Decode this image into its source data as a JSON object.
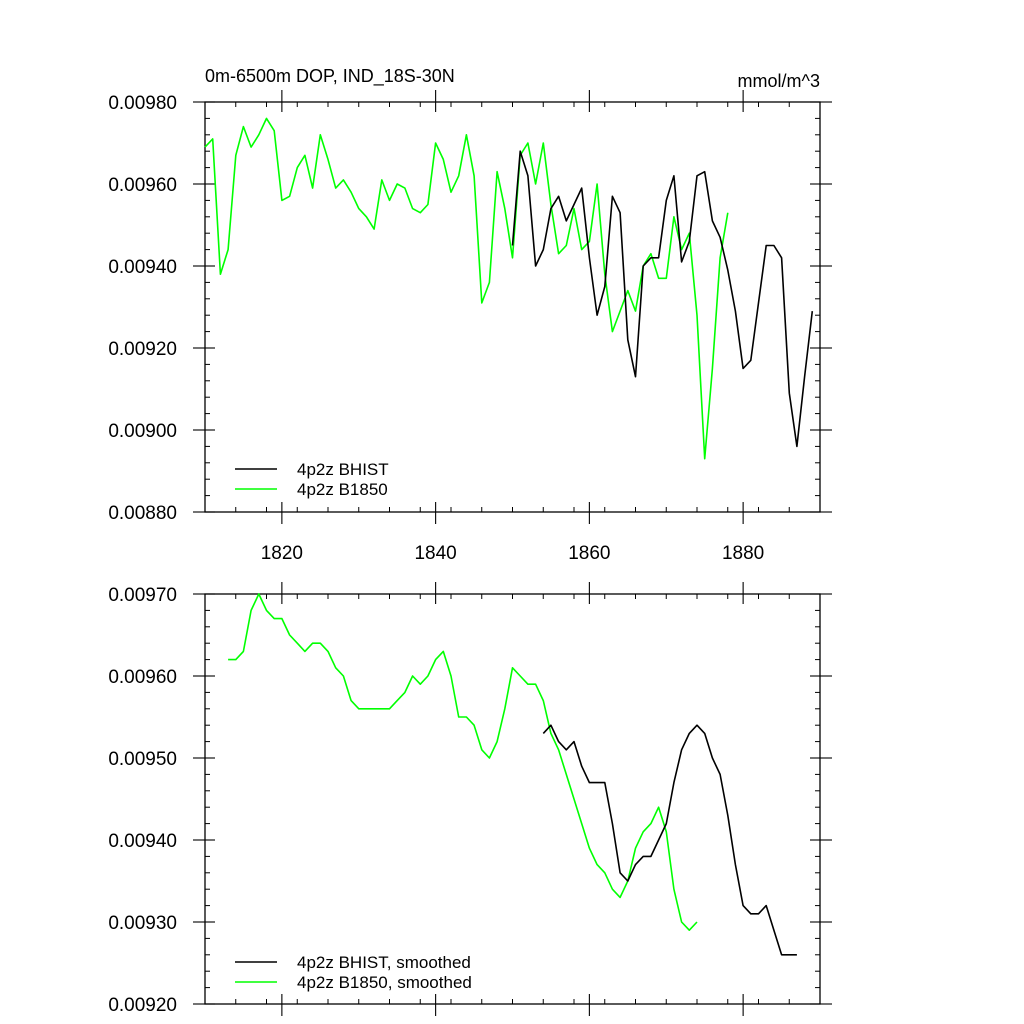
{
  "chart_data": [
    {
      "type": "line",
      "title": "0m-6500m DOP, IND_18S-30N",
      "units": "mmol/m^3",
      "xlim": [
        1810,
        1890
      ],
      "ylim": [
        0.0088,
        0.0098
      ],
      "xticks": [
        1820,
        1840,
        1860,
        1880
      ],
      "yticks": [
        0.0088,
        0.009,
        0.0092,
        0.0094,
        0.0096,
        0.0098
      ],
      "xtick_labels": [
        "1820",
        "1840",
        "1860",
        "1880"
      ],
      "ytick_labels": [
        "0.00880",
        "0.00900",
        "0.00920",
        "0.00940",
        "0.00960",
        "0.00980"
      ],
      "grid": false,
      "legend_position": "bottom-left",
      "series": [
        {
          "name": "4p2z BHIST",
          "color": "#000000",
          "x_start": 1850,
          "values": [
            0.00945,
            0.00968,
            0.00962,
            0.0094,
            0.00944,
            0.00954,
            0.00957,
            0.00951,
            0.00955,
            0.00959,
            0.00942,
            0.00928,
            0.00935,
            0.00957,
            0.00953,
            0.00922,
            0.00913,
            0.0094,
            0.00942,
            0.00942,
            0.00956,
            0.00962,
            0.00941,
            0.00946,
            0.00962,
            0.00963,
            0.00951,
            0.00947,
            0.00939,
            0.00929,
            0.00915,
            0.00917,
            0.00931,
            0.00945,
            0.00945,
            0.00942,
            0.00909,
            0.00896,
            0.00913,
            0.00929
          ]
        },
        {
          "name": "4p2z B1850",
          "color": "#00ff00",
          "x_start": 1810,
          "values": [
            0.00969,
            0.00971,
            0.00938,
            0.00944,
            0.00967,
            0.00974,
            0.00969,
            0.00972,
            0.00976,
            0.00973,
            0.00956,
            0.00957,
            0.00964,
            0.00967,
            0.00959,
            0.00972,
            0.00966,
            0.00959,
            0.00961,
            0.00958,
            0.00954,
            0.00952,
            0.00949,
            0.00961,
            0.00956,
            0.0096,
            0.00959,
            0.00954,
            0.00953,
            0.00955,
            0.0097,
            0.00966,
            0.00958,
            0.00962,
            0.00972,
            0.00962,
            0.00931,
            0.00936,
            0.00963,
            0.00954,
            0.00942,
            0.00967,
            0.0097,
            0.0096,
            0.0097,
            0.00955,
            0.00943,
            0.00945,
            0.00954,
            0.00944,
            0.00946,
            0.0096,
            0.00938,
            0.00924,
            0.00929,
            0.00934,
            0.00929,
            0.0094,
            0.00943,
            0.00937,
            0.00937,
            0.00952,
            0.00944,
            0.00948,
            0.00928,
            0.00893,
            0.00915,
            0.00942,
            0.00953
          ]
        }
      ]
    },
    {
      "type": "line",
      "title": "",
      "xlim": [
        1810,
        1890
      ],
      "ylim": [
        0.0092,
        0.0097
      ],
      "xticks": [
        1820,
        1840,
        1860,
        1880
      ],
      "yticks": [
        0.0092,
        0.0093,
        0.0094,
        0.0095,
        0.0096,
        0.0097
      ],
      "ytick_labels": [
        "0.00920",
        "0.00930",
        "0.00940",
        "0.00950",
        "0.00960",
        "0.00970"
      ],
      "grid": false,
      "legend_position": "bottom-left",
      "series": [
        {
          "name": "4p2z BHIST, smoothed",
          "color": "#000000",
          "x_start": 1854,
          "values": [
            0.00953,
            0.00954,
            0.00952,
            0.00951,
            0.00952,
            0.00949,
            0.00947,
            0.00947,
            0.00947,
            0.00942,
            0.00936,
            0.00935,
            0.00937,
            0.00938,
            0.00938,
            0.0094,
            0.00942,
            0.00947,
            0.00951,
            0.00953,
            0.00954,
            0.00953,
            0.0095,
            0.00948,
            0.00943,
            0.00937,
            0.00932,
            0.00931,
            0.00931,
            0.00932,
            0.00929,
            0.00926,
            0.00926,
            0.00926
          ]
        },
        {
          "name": "4p2z B1850, smoothed",
          "color": "#00ff00",
          "x_start": 1813,
          "values": [
            0.00962,
            0.00962,
            0.00963,
            0.00968,
            0.0097,
            0.00968,
            0.00967,
            0.00967,
            0.00965,
            0.00964,
            0.00963,
            0.00964,
            0.00964,
            0.00963,
            0.00961,
            0.0096,
            0.00957,
            0.00956,
            0.00956,
            0.00956,
            0.00956,
            0.00956,
            0.00957,
            0.00958,
            0.0096,
            0.00959,
            0.0096,
            0.00962,
            0.00963,
            0.0096,
            0.00955,
            0.00955,
            0.00954,
            0.00951,
            0.0095,
            0.00952,
            0.00956,
            0.00961,
            0.0096,
            0.00959,
            0.00959,
            0.00957,
            0.00953,
            0.00951,
            0.00948,
            0.00945,
            0.00942,
            0.00939,
            0.00937,
            0.00936,
            0.00934,
            0.00933,
            0.00935,
            0.00939,
            0.00941,
            0.00942,
            0.00944,
            0.00941,
            0.00934,
            0.0093,
            0.00929,
            0.0093
          ]
        }
      ]
    }
  ]
}
